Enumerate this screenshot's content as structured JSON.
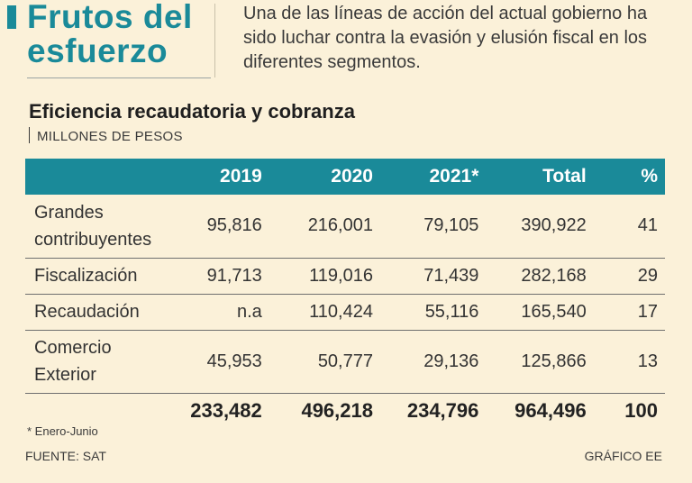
{
  "header": {
    "headline": "Frutos del esfuerzo",
    "lead": "Una de las líneas de acción del actual gobierno ha sido luchar contra la evasión y elusión fiscal en los diferentes segmentos."
  },
  "colors": {
    "accent": "#1a8a99",
    "background": "#fbf1d9"
  },
  "chart_data": {
    "type": "table",
    "title": "Eficiencia recaudatoria y cobranza",
    "subtitle": "MILLONES DE PESOS",
    "columns": [
      "",
      "2019",
      "2020",
      "2021*",
      "Total",
      "%"
    ],
    "rows": [
      {
        "label": "Grandes contribuyentes",
        "values": [
          "95,816",
          "216,001",
          "79,105",
          "390,922",
          "41"
        ]
      },
      {
        "label": "Fiscalización",
        "values": [
          "91,713",
          "119,016",
          "71,439",
          "282,168",
          "29"
        ]
      },
      {
        "label": "Recaudación",
        "values": [
          "n.a",
          "110,424",
          "55,116",
          "165,540",
          "17"
        ]
      },
      {
        "label": "Comercio Exterior",
        "values": [
          "45,953",
          "50,777",
          "29,136",
          "125,866",
          "13"
        ]
      }
    ],
    "totals": [
      "233,482",
      "496,218",
      "234,796",
      "964,496",
      "100"
    ],
    "footnote": "* Enero-Junio"
  },
  "footer": {
    "source": "FUENTE: SAT",
    "credit": "GRÁFICO EE"
  }
}
